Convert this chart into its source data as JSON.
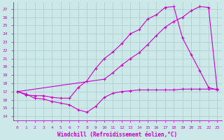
{
  "xlabel": "Windchill (Refroidissement éolien,°C)",
  "background_color": "#cce8e8",
  "line_color": "#cc00cc",
  "grid_color": "#aacccc",
  "xlim": [
    -0.5,
    23.5
  ],
  "ylim": [
    13.5,
    27.8
  ],
  "yticks": [
    14,
    15,
    16,
    17,
    18,
    19,
    20,
    21,
    22,
    23,
    24,
    25,
    26,
    27
  ],
  "xticks": [
    0,
    1,
    2,
    3,
    4,
    5,
    6,
    7,
    8,
    9,
    10,
    11,
    12,
    13,
    14,
    15,
    16,
    17,
    18,
    19,
    20,
    21,
    22,
    23
  ],
  "line1_x": [
    0,
    1,
    2,
    3,
    4,
    5,
    6,
    7,
    8,
    9,
    10,
    11,
    12,
    13,
    14,
    15,
    16,
    17,
    18,
    19,
    20,
    21,
    22,
    23
  ],
  "line1_y": [
    17.0,
    16.7,
    16.2,
    16.1,
    15.8,
    15.6,
    15.4,
    14.8,
    14.5,
    15.2,
    16.3,
    16.8,
    17.0,
    17.1,
    17.2,
    17.2,
    17.2,
    17.2,
    17.2,
    17.3,
    17.3,
    17.3,
    17.3,
    17.3
  ],
  "line2_x": [
    0,
    1,
    2,
    3,
    4,
    5,
    6,
    7,
    8,
    9,
    10,
    11,
    12,
    13,
    14,
    15,
    16,
    17,
    18,
    19,
    20,
    21,
    22,
    23
  ],
  "line2_y": [
    17.0,
    16.6,
    16.5,
    16.5,
    16.3,
    16.2,
    16.2,
    17.5,
    18.3,
    19.8,
    21.0,
    21.8,
    22.8,
    24.0,
    24.5,
    25.8,
    26.3,
    27.2,
    27.3,
    23.5,
    21.5,
    19.5,
    17.5,
    17.2
  ],
  "line3_x": [
    0,
    10,
    11,
    12,
    13,
    14,
    15,
    16,
    17,
    18,
    19,
    20,
    21,
    22,
    23
  ],
  "line3_y": [
    17.0,
    18.5,
    19.3,
    20.2,
    21.0,
    21.7,
    22.7,
    23.8,
    24.8,
    25.5,
    26.0,
    26.8,
    27.3,
    27.2,
    17.2
  ],
  "xlabel_fontsize": 5.5,
  "tick_fontsize": 4.5
}
